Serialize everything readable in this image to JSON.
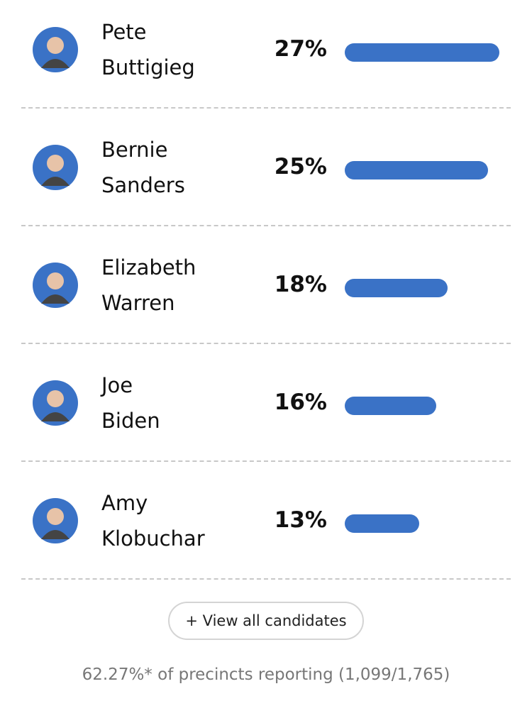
{
  "chart_data": {
    "type": "bar",
    "categories": [
      "Pete Buttigieg",
      "Bernie Sanders",
      "Elizabeth Warren",
      "Joe Biden",
      "Amy Klobuchar"
    ],
    "values": [
      27,
      25,
      18,
      16,
      13
    ],
    "value_labels": [
      "27%",
      "25%",
      "18%",
      "16%",
      "13%"
    ],
    "color": "#3a72c6"
  },
  "button": "+ View all candidates",
  "footer": "62.27%* of precincts reporting (1,099/1,765)"
}
